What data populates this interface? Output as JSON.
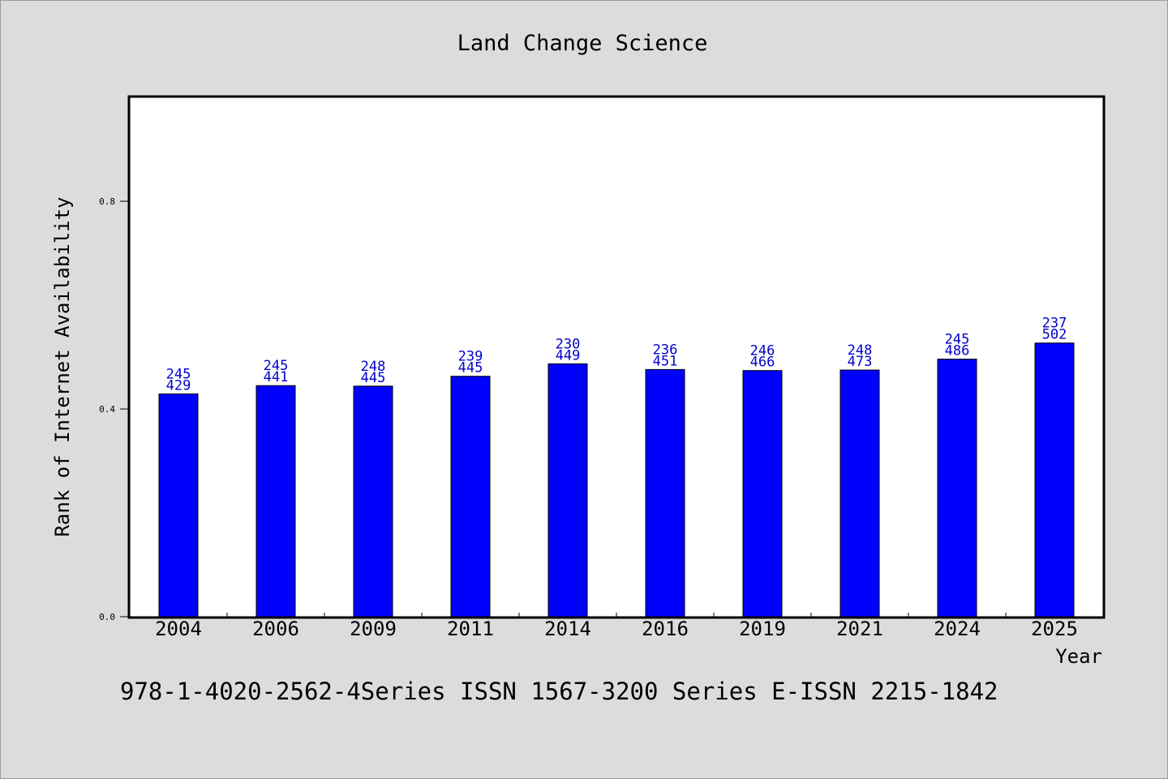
{
  "chart_data": {
    "type": "bar",
    "title": "Land Change Science",
    "xlabel": "Year",
    "ylabel": "Rank of Internet Availability",
    "categories": [
      "2004",
      "2006",
      "2009",
      "2011",
      "2014",
      "2016",
      "2019",
      "2021",
      "2024",
      "2025"
    ],
    "series": [
      {
        "values": [
          0.429,
          0.441,
          0.445,
          0.445,
          0.449,
          0.451,
          0.466,
          0.473,
          0.486,
          0.502
        ],
        "bar_heights": [
          0.429,
          0.445,
          0.444,
          0.463,
          0.487,
          0.476,
          0.474,
          0.475,
          0.496,
          0.527
        ],
        "labels_top": [
          "245",
          "245",
          "248",
          "239",
          "230",
          "236",
          "246",
          "248",
          "245",
          "237"
        ],
        "labels_bottom": [
          "429",
          "441",
          "445",
          "445",
          "449",
          "451",
          "466",
          "473",
          "486",
          "502"
        ]
      }
    ],
    "yticks": [
      "0.0",
      "0.4",
      "0.8"
    ],
    "ytick_values": [
      0.0,
      0.4,
      0.8
    ],
    "ylim": [
      0,
      1.0
    ],
    "grid": false,
    "bar_color": "#0000ff",
    "label_color": "#0000cc",
    "plot_background": "#ffffff",
    "page_background": "#dcdcdc"
  },
  "footer_text": "978-1-4020-2562-4Series ISSN 1567-3200 Series E-ISSN 2215-1842"
}
